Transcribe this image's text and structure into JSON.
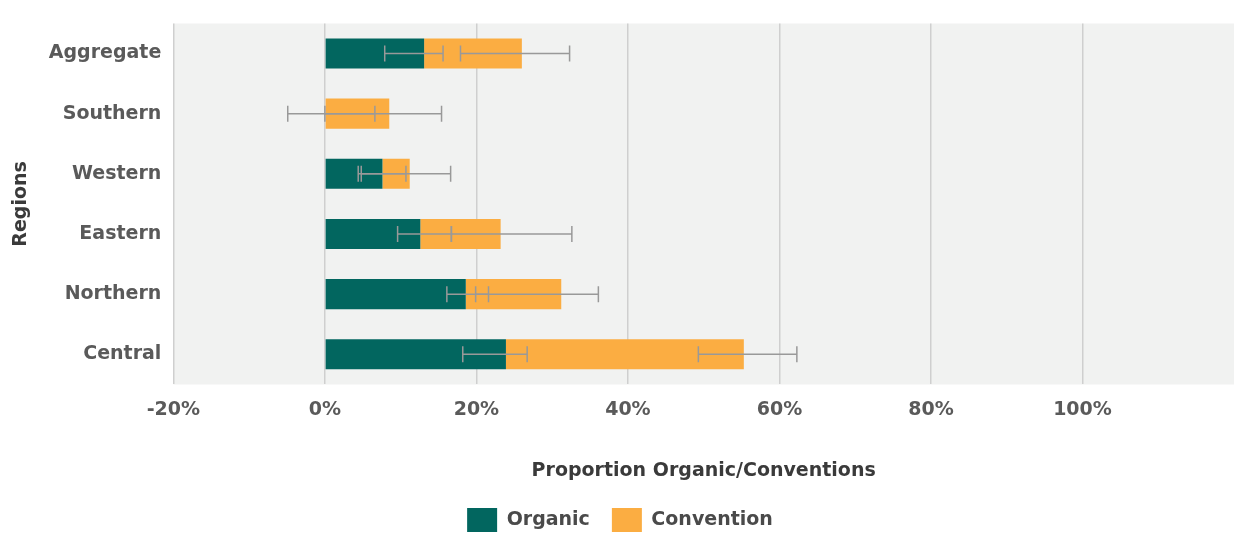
{
  "chart_data": {
    "type": "bar",
    "orientation": "horizontal",
    "stacked": true,
    "xlabel": "Proportion Organic/Conventions",
    "ylabel": "Regions",
    "categories": [
      "Aggregate",
      "Southern",
      "Western",
      "Eastern",
      "Northern",
      "Central"
    ],
    "series": [
      {
        "name": "Organic",
        "color": "#02665f",
        "values": [
          13.1,
          0,
          7.6,
          12.6,
          18.6,
          23.9
        ],
        "errors": [
          [
            7.9,
            15.6
          ],
          [
            -4.9,
            6.6
          ],
          [
            4.4,
            10.7
          ],
          [
            9.6,
            16.7
          ],
          [
            16.1,
            21.6
          ],
          [
            18.2,
            26.7
          ]
        ]
      },
      {
        "name": "Convention",
        "color": "#fbad42",
        "values": [
          12.9,
          8.5,
          3.6,
          10.6,
          12.6,
          31.4
        ],
        "errors": [
          [
            17.9,
            32.3
          ],
          [
            0,
            15.4
          ],
          [
            4.8,
            16.6
          ],
          [
            16.7,
            32.6
          ],
          [
            19.9,
            36.1
          ],
          [
            49.3,
            62.3
          ]
        ]
      }
    ],
    "xlim": [
      -20,
      120
    ],
    "xticks": [
      {
        "value": -20,
        "label": "-20%"
      },
      {
        "value": 0,
        "label": "0%"
      },
      {
        "value": 20,
        "label": "20%"
      },
      {
        "value": 40,
        "label": "40%"
      },
      {
        "value": 60,
        "label": "60%"
      },
      {
        "value": 80,
        "label": "80%"
      },
      {
        "value": 100,
        "label": "100%"
      }
    ],
    "grid": "x",
    "legend": "bottom"
  }
}
